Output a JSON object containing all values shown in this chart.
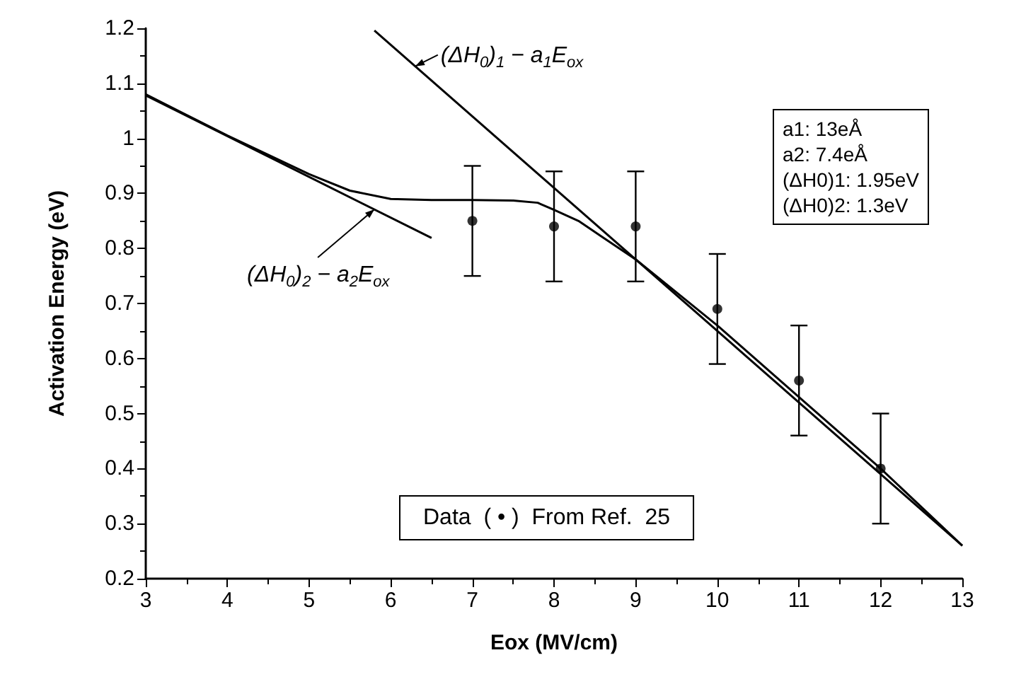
{
  "chart_data": {
    "type": "line",
    "xlabel": "Eox (MV/cm)",
    "ylabel": "Activation Energy (eV)",
    "xlim": [
      3,
      13
    ],
    "ylim": [
      0.2,
      1.2
    ],
    "xticks": [
      3,
      4,
      5,
      6,
      7,
      8,
      9,
      10,
      11,
      12,
      13
    ],
    "yticks": [
      0.2,
      0.3,
      0.4,
      0.5,
      0.6,
      0.7,
      0.8,
      0.9,
      1,
      1.1,
      1.2
    ],
    "line_style": "solid",
    "series": [
      {
        "color": "#000000",
        "x": [
          5.8,
          13
        ],
        "values": [
          1.196,
          0.26
        ]
      },
      {
        "color": "#000000",
        "x": [
          3,
          6.5
        ],
        "values": [
          1.078,
          0.819
        ]
      },
      {
        "color": "#000000",
        "x": [
          3,
          4,
          5,
          5.5,
          6,
          6.5,
          7,
          7.5,
          7.8,
          8,
          8.3,
          8.6,
          9,
          9.5,
          10,
          11,
          12,
          13
        ],
        "values": [
          1.08,
          1.005,
          0.935,
          0.905,
          0.89,
          0.888,
          0.888,
          0.887,
          0.883,
          0.87,
          0.85,
          0.82,
          0.78,
          0.72,
          0.66,
          0.53,
          0.4,
          0.26
        ]
      },
      {
        "type": "scatter",
        "marker": "circle",
        "color": "#000000",
        "x": [
          7,
          8,
          9,
          10,
          11,
          12
        ],
        "values": [
          0.85,
          0.84,
          0.84,
          0.69,
          0.56,
          0.4
        ],
        "errors": [
          0.1,
          0.1,
          0.1,
          0.1,
          0.1,
          0.1
        ]
      }
    ],
    "annotations": [
      {
        "text": "(ΔH$_{0}$)$_{1}$ − a$_{1}$E$_{ox}$",
        "x": 6.3,
        "y": 1.131
      },
      {
        "text": "(ΔH$_{0}$)$_{2}$ − a$_{2}$E$_{ox}$",
        "x": 5.8,
        "y": 0.871
      },
      "a1: 13eÅ\na2: 7.4eÅ\n(ΔH0)1: 1.95eV\n(ΔH0)2: 1.3eV",
      "Data  ( • )  From Ref.  25"
    ]
  }
}
